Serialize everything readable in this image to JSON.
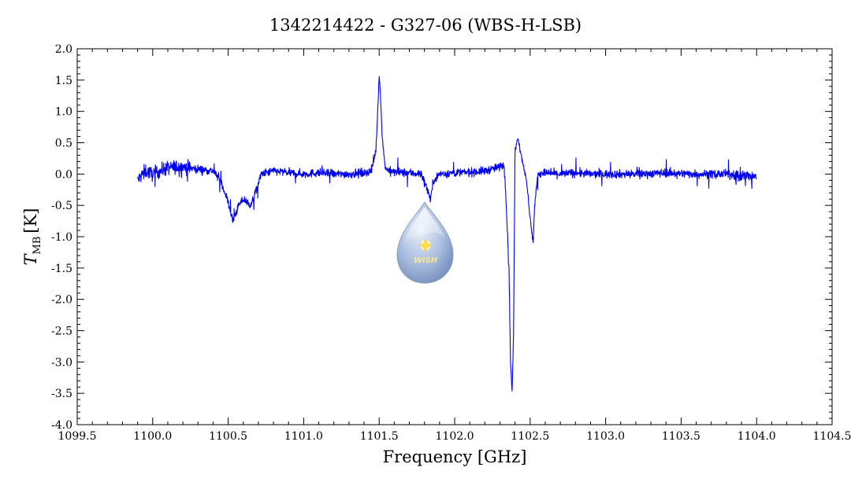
{
  "chart_data": {
    "type": "line",
    "title": "1342214422 - G327-06 (WBS-H-LSB)",
    "xlabel": "Frequency [GHz]",
    "ylabel_main": "T",
    "ylabel_sub": "MB",
    "ylabel_unit": "[K]",
    "xlim": [
      1099.5,
      1104.5
    ],
    "ylim": [
      -4.0,
      2.0
    ],
    "grid": false,
    "x_ticks": [
      "1099.5",
      "1100.0",
      "1100.5",
      "1101.0",
      "1101.5",
      "1102.0",
      "1102.5",
      "1103.0",
      "1103.5",
      "1104.0",
      "1104.5"
    ],
    "y_ticks": [
      "2.0",
      "1.5",
      "1.0",
      "0.5",
      "0.0",
      "-0.5",
      "-1.0",
      "-1.5",
      "-2.0",
      "-2.5",
      "-3.0",
      "-3.5",
      "-4.0"
    ],
    "series": [
      {
        "color": "#0000ee",
        "x": [
          1099.9,
          1099.95,
          1100.0,
          1100.1,
          1100.2,
          1100.3,
          1100.4,
          1100.45,
          1100.5,
          1100.53,
          1100.57,
          1100.6,
          1100.65,
          1100.68,
          1100.72,
          1100.8,
          1100.9,
          1101.0,
          1101.1,
          1101.2,
          1101.3,
          1101.4,
          1101.45,
          1101.48,
          1101.5,
          1101.51,
          1101.52,
          1101.54,
          1101.57,
          1101.6,
          1101.7,
          1101.78,
          1101.82,
          1101.84,
          1101.86,
          1101.9,
          1102.0,
          1102.1,
          1102.2,
          1102.28,
          1102.33,
          1102.36,
          1102.37,
          1102.38,
          1102.39,
          1102.4,
          1102.42,
          1102.44,
          1102.46,
          1102.48,
          1102.5,
          1102.52,
          1102.53,
          1102.55,
          1102.6,
          1102.7,
          1102.8,
          1102.9,
          1103.0,
          1103.2,
          1103.4,
          1103.6,
          1103.8,
          1104.0
        ],
        "y": [
          -0.1,
          0.05,
          0.0,
          0.1,
          0.12,
          0.08,
          0.05,
          -0.1,
          -0.45,
          -0.75,
          -0.5,
          -0.4,
          -0.5,
          -0.3,
          0.0,
          0.05,
          0.02,
          0.0,
          0.02,
          0.0,
          0.0,
          0.02,
          0.05,
          0.4,
          1.6,
          1.2,
          0.6,
          0.1,
          0.05,
          0.03,
          0.02,
          0.0,
          -0.25,
          -0.4,
          -0.1,
          0.0,
          0.02,
          0.03,
          0.05,
          0.1,
          0.15,
          -1.5,
          -3.0,
          -3.5,
          -2.6,
          0.4,
          0.6,
          0.3,
          0.1,
          -0.2,
          -0.7,
          -1.1,
          -0.5,
          0.0,
          0.02,
          0.0,
          0.02,
          0.0,
          0.0,
          0.0,
          0.02,
          0.0,
          0.0,
          -0.05
        ]
      }
    ]
  },
  "logo": {
    "text": "WISH"
  }
}
